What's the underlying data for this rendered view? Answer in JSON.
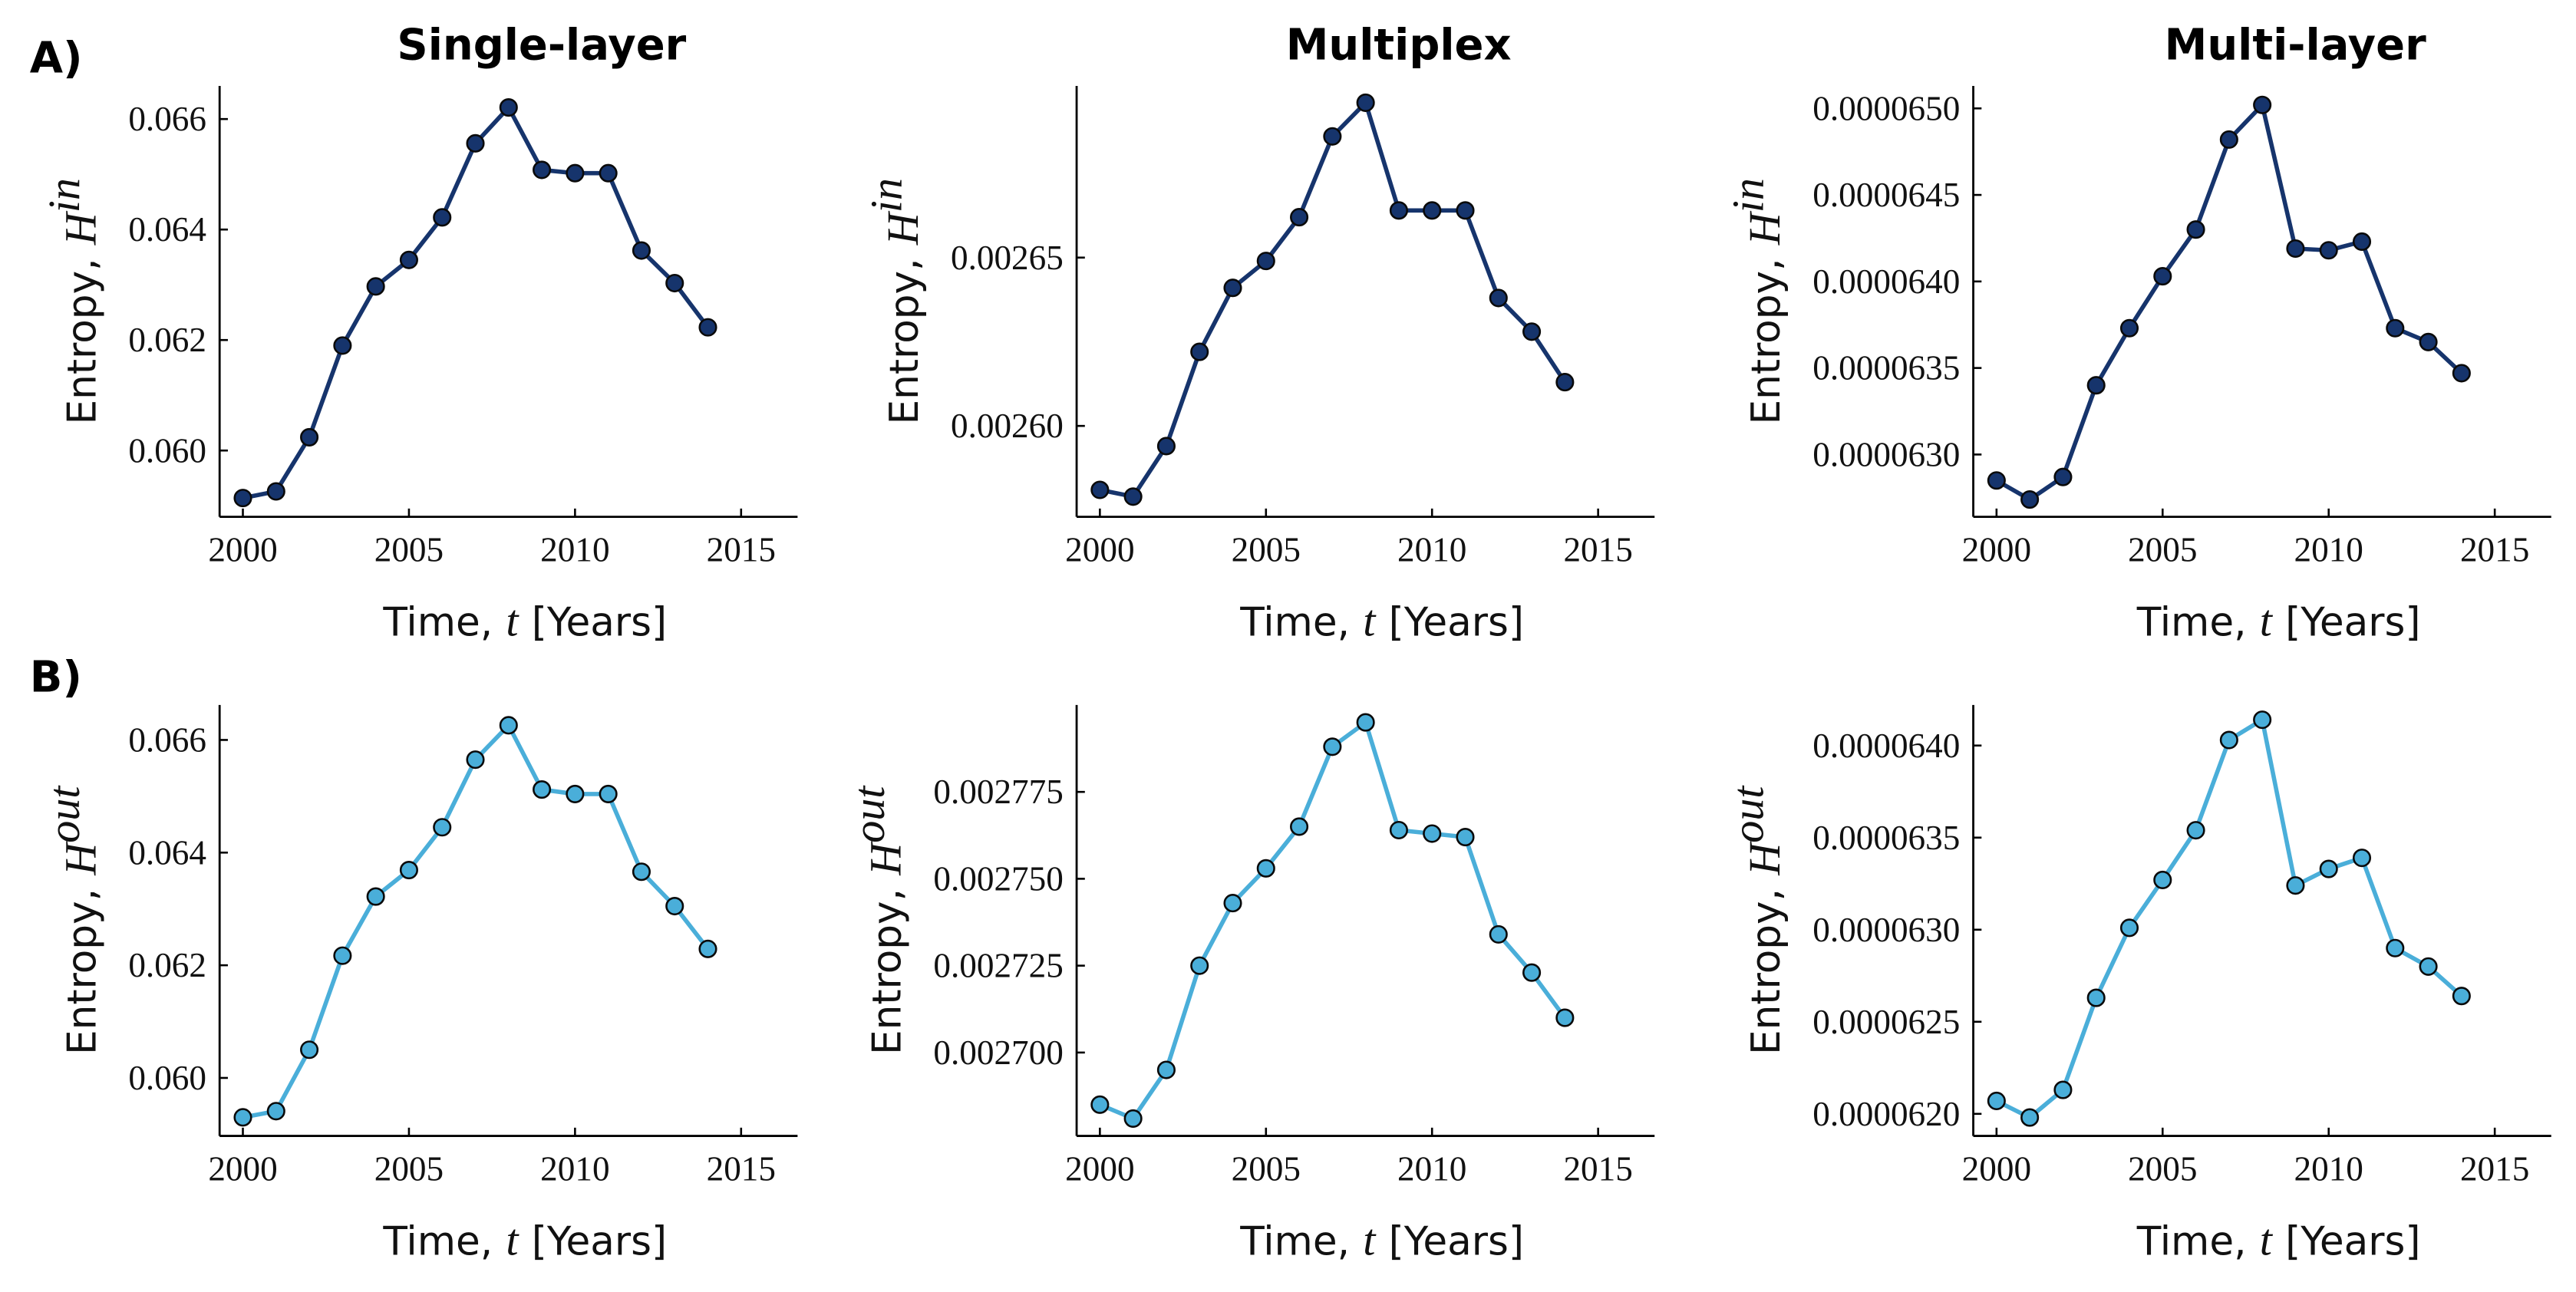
{
  "chart_data": [
    {
      "type": "line",
      "title": "Single-layer",
      "panel_label": "A)",
      "ylabel": {
        "text": "Entropy,",
        "symbol": "H",
        "superscript": "in"
      },
      "xlabel": {
        "text": "Time,",
        "symbol": "t",
        "unit": "[Years]"
      },
      "x": [
        2000,
        2001,
        2002,
        2003,
        2004,
        2005,
        2006,
        2007,
        2008,
        2009,
        2010,
        2011,
        2012,
        2013,
        2014
      ],
      "values": [
        0.05914,
        0.05926,
        0.06024,
        0.0619,
        0.06297,
        0.06345,
        0.06422,
        0.06556,
        0.06621,
        0.06508,
        0.06502,
        0.06502,
        0.06362,
        0.06303,
        0.06223
      ],
      "color": "#16346c",
      "xlim": [
        1999.3,
        2016.7
      ],
      "xticks": [
        2000,
        2005,
        2010,
        2015
      ],
      "ylim": [
        0.0588,
        0.0666
      ],
      "yticks": [
        {
          "value": 0.06,
          "label": "0.060"
        },
        0.062,
        0.064,
        0.066
      ]
    },
    {
      "type": "line",
      "title": "Multiplex",
      "ylabel": {
        "text": "Entropy,",
        "symbol": "H",
        "superscript": "in"
      },
      "xlabel": {
        "text": "Time,",
        "symbol": "t",
        "unit": "[Years]"
      },
      "x": [
        2000,
        2001,
        2002,
        2003,
        2004,
        2005,
        2006,
        2007,
        2008,
        2009,
        2010,
        2011,
        2012,
        2013,
        2014
      ],
      "values": [
        0.002581,
        0.002579,
        0.002594,
        0.002622,
        0.002641,
        0.002649,
        0.002662,
        0.002686,
        0.002696,
        0.002664,
        0.002664,
        0.002664,
        0.002638,
        0.002628,
        0.002613
      ],
      "color": "#16346c",
      "xlim": [
        1999.3,
        2016.7
      ],
      "xticks": [
        2000,
        2005,
        2010,
        2015
      ],
      "ylim": [
        0.002573,
        0.002701
      ],
      "yticks": [
        {
          "value": 0.0026,
          "label": "0.00260"
        },
        0.00265
      ]
    },
    {
      "type": "line",
      "title": "Multi-layer",
      "ylabel": {
        "text": "Entropy,",
        "symbol": "H",
        "superscript": "in"
      },
      "xlabel": {
        "text": "Time,",
        "symbol": "t",
        "unit": "[Years]"
      },
      "x": [
        2000,
        2001,
        2002,
        2003,
        2004,
        2005,
        2006,
        2007,
        2008,
        2009,
        2010,
        2011,
        2012,
        2013,
        2014
      ],
      "values": [
        6.285e-05,
        6.274e-05,
        6.287e-05,
        6.34e-05,
        6.373e-05,
        6.403e-05,
        6.43e-05,
        6.482e-05,
        6.502e-05,
        6.419e-05,
        6.418e-05,
        6.423e-05,
        6.373e-05,
        6.365e-05,
        6.347e-05
      ],
      "color": "#16346c",
      "xlim": [
        1999.3,
        2016.7
      ],
      "xticks": [
        2000,
        2005,
        2010,
        2015
      ],
      "ylim": [
        6.264e-05,
        6.513e-05
      ],
      "yticks": [
        {
          "value": 6.3e-05,
          "label": "0.0000630"
        },
        6.35e-05,
        {
          "value": 6.4e-05,
          "label": "0.0000640"
        },
        6.45e-05,
        {
          "value": 6.5e-05,
          "label": "0.0000650"
        }
      ]
    },
    {
      "type": "line",
      "panel_label": "B)",
      "ylabel": {
        "text": "Entropy,",
        "symbol": "H",
        "superscript": "out"
      },
      "xlabel": {
        "text": "Time,",
        "symbol": "t",
        "unit": "[Years]"
      },
      "x": [
        2000,
        2001,
        2002,
        2003,
        2004,
        2005,
        2006,
        2007,
        2008,
        2009,
        2010,
        2011,
        2012,
        2013,
        2014
      ],
      "values": [
        0.0593,
        0.05941,
        0.0605,
        0.06217,
        0.06322,
        0.06369,
        0.06445,
        0.06565,
        0.06626,
        0.06512,
        0.06504,
        0.06504,
        0.06366,
        0.06305,
        0.06229
      ],
      "color": "#4aaed9",
      "xlim": [
        1999.3,
        2016.7
      ],
      "xticks": [
        2000,
        2005,
        2010,
        2015
      ],
      "ylim": [
        0.05897,
        0.06662
      ],
      "yticks": [
        {
          "value": 0.06,
          "label": "0.060"
        },
        0.062,
        0.064,
        0.066
      ]
    },
    {
      "type": "line",
      "ylabel": {
        "text": "Entropy,",
        "symbol": "H",
        "superscript": "out"
      },
      "xlabel": {
        "text": "Time,",
        "symbol": "t",
        "unit": "[Years]"
      },
      "x": [
        2000,
        2001,
        2002,
        2003,
        2004,
        2005,
        2006,
        2007,
        2008,
        2009,
        2010,
        2011,
        2012,
        2013,
        2014
      ],
      "values": [
        0.002685,
        0.002681,
        0.002695,
        0.002725,
        0.002743,
        0.002753,
        0.002765,
        0.002788,
        0.002795,
        0.002764,
        0.002763,
        0.002762,
        0.002734,
        0.002723,
        0.00271
      ],
      "color": "#4aaed9",
      "xlim": [
        1999.3,
        2016.7
      ],
      "xticks": [
        2000,
        2005,
        2010,
        2015
      ],
      "ylim": [
        0.002676,
        0.0028
      ],
      "yticks": [
        {
          "value": 0.0027,
          "label": "0.002700"
        },
        0.002725,
        {
          "value": 0.00275,
          "label": "0.002750"
        },
        0.002775
      ]
    },
    {
      "type": "line",
      "ylabel": {
        "text": "Entropy,",
        "symbol": "H",
        "superscript": "out"
      },
      "xlabel": {
        "text": "Time,",
        "symbol": "t",
        "unit": "[Years]"
      },
      "x": [
        2000,
        2001,
        2002,
        2003,
        2004,
        2005,
        2006,
        2007,
        2008,
        2009,
        2010,
        2011,
        2012,
        2013,
        2014
      ],
      "values": [
        6.207e-05,
        6.198e-05,
        6.213e-05,
        6.263e-05,
        6.301e-05,
        6.327e-05,
        6.354e-05,
        6.403e-05,
        6.414e-05,
        6.324e-05,
        6.333e-05,
        6.339e-05,
        6.29e-05,
        6.28e-05,
        6.264e-05
      ],
      "color": "#4aaed9",
      "xlim": [
        1999.3,
        2016.7
      ],
      "xticks": [
        2000,
        2005,
        2010,
        2015
      ],
      "ylim": [
        6.188e-05,
        6.422e-05
      ],
      "yticks": [
        {
          "value": 6.2e-05,
          "label": "0.0000620"
        },
        6.25e-05,
        {
          "value": 6.3e-05,
          "label": "0.0000630"
        },
        6.35e-05,
        {
          "value": 6.4e-05,
          "label": "0.0000640"
        }
      ]
    }
  ]
}
